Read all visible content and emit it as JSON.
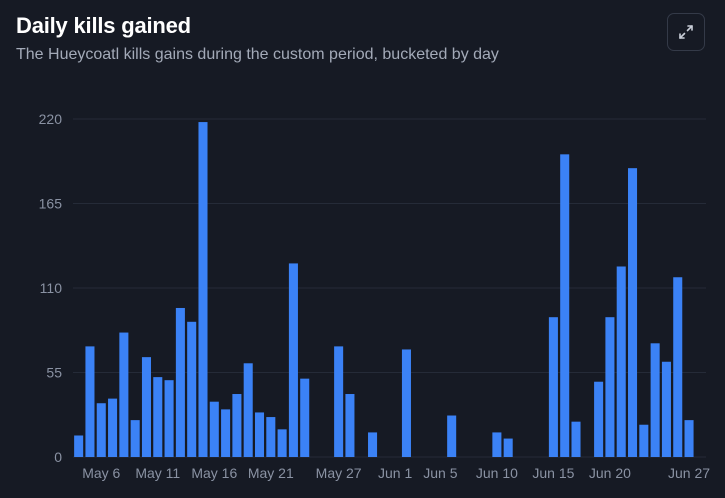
{
  "header": {
    "title": "Daily kills gained",
    "subtitle": "The Hueycoatl kills gains during the custom period, bucketed by day",
    "expand_icon": "expand-icon"
  },
  "colors": {
    "background": "#161a24",
    "bar": "#3b82f6",
    "grid": "#252b38",
    "axis_text": "#8a92a3"
  },
  "chart_data": {
    "type": "bar",
    "title": "Daily kills gained",
    "subtitle": "The Hueycoatl kills gains during the custom period, bucketed by day",
    "xlabel": "",
    "ylabel": "",
    "ylim": [
      0,
      220
    ],
    "yticks": [
      0,
      55,
      110,
      165,
      220
    ],
    "grid": true,
    "categories": [
      "May 4",
      "May 5",
      "May 6",
      "May 7",
      "May 8",
      "May 9",
      "May 10",
      "May 11",
      "May 12",
      "May 13",
      "May 14",
      "May 15",
      "May 16",
      "May 17",
      "May 18",
      "May 19",
      "May 20",
      "May 21",
      "May 22",
      "May 23",
      "May 24",
      "May 25",
      "May 26",
      "May 27",
      "May 28",
      "May 29",
      "May 30",
      "May 31",
      "Jun 1",
      "Jun 2",
      "Jun 3",
      "Jun 4",
      "Jun 5",
      "Jun 6",
      "Jun 7",
      "Jun 8",
      "Jun 9",
      "Jun 10",
      "Jun 11",
      "Jun 12",
      "Jun 13",
      "Jun 14",
      "Jun 15",
      "Jun 16",
      "Jun 17",
      "Jun 18",
      "Jun 19",
      "Jun 20",
      "Jun 21",
      "Jun 22",
      "Jun 23",
      "Jun 24",
      "Jun 25",
      "Jun 26",
      "Jun 27",
      "Jun 28"
    ],
    "values": [
      14,
      72,
      35,
      38,
      81,
      24,
      65,
      52,
      50,
      97,
      88,
      218,
      36,
      31,
      41,
      61,
      29,
      26,
      18,
      126,
      51,
      0,
      0,
      72,
      41,
      0,
      16,
      0,
      0,
      70,
      0,
      0,
      0,
      27,
      0,
      0,
      0,
      16,
      12,
      0,
      0,
      0,
      91,
      197,
      23,
      0,
      49,
      91,
      124,
      188,
      21,
      74,
      62,
      117,
      24,
      0
    ],
    "xtick_labels": [
      {
        "label": "May 6",
        "category": "May 6"
      },
      {
        "label": "May 11",
        "category": "May 11"
      },
      {
        "label": "May 16",
        "category": "May 16"
      },
      {
        "label": "May 21",
        "category": "May 21"
      },
      {
        "label": "May 27",
        "category": "May 27"
      },
      {
        "label": "Jun 1",
        "category": "Jun 1"
      },
      {
        "label": "Jun 5",
        "category": "Jun 5"
      },
      {
        "label": "Jun 10",
        "category": "Jun 10"
      },
      {
        "label": "Jun 15",
        "category": "Jun 15"
      },
      {
        "label": "Jun 20",
        "category": "Jun 20"
      },
      {
        "label": "Jun 27",
        "category": "Jun 27"
      }
    ]
  }
}
